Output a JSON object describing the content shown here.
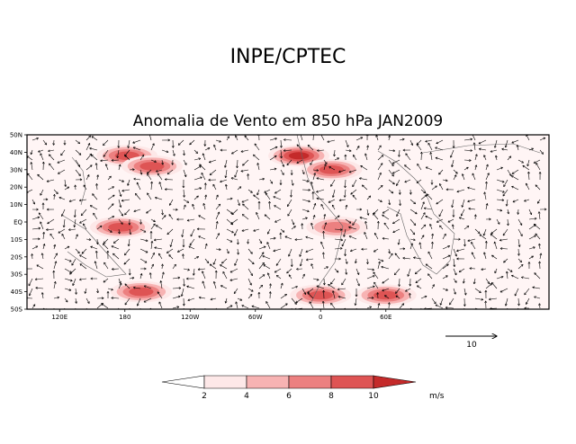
{
  "chart_data": {
    "type": "heatmap",
    "header": "INPE/CPTEC",
    "title": "Anomalia de Vento em 850 hPa JAN2009",
    "variable": "850 hPa wind anomaly vectors with shaded speed",
    "lon_range": [
      90,
      210
    ],
    "lat_range": [
      -50,
      50
    ],
    "x_tick_labels": [
      "120E",
      "180",
      "120W",
      "60W",
      "0",
      "60E"
    ],
    "y_tick_labels": [
      "50N",
      "40N",
      "30N",
      "20N",
      "10N",
      "EQ",
      "10S",
      "20S",
      "30S",
      "40S",
      "50S"
    ],
    "reference_vector": {
      "label": "10",
      "value": 10
    },
    "colorbar": {
      "levels": [
        "2",
        "4",
        "6",
        "8",
        "10"
      ],
      "colors": [
        "#ffffff",
        "#fde8e8",
        "#f7b3b3",
        "#ec8080",
        "#de5454",
        "#c42a2a"
      ],
      "units": "m/s"
    },
    "hotspots": [
      {
        "name": "north-pacific-west",
        "lon": 182,
        "lat": 38,
        "speed": 8
      },
      {
        "name": "north-pacific-east",
        "lon": 205,
        "lat": 32,
        "speed": 8
      },
      {
        "name": "north-atlantic",
        "lon": -20,
        "lat": 38,
        "speed": 9
      },
      {
        "name": "mediterranean-africa",
        "lon": 10,
        "lat": 30,
        "speed": 7
      },
      {
        "name": "south-pacific-west",
        "lon": 176,
        "lat": -3,
        "speed": 7
      },
      {
        "name": "south-pacific-band",
        "lon": 195,
        "lat": -40,
        "speed": 8
      },
      {
        "name": "south-atlantic",
        "lon": 0,
        "lat": -42,
        "speed": 7
      },
      {
        "name": "indian-ocean-south",
        "lon": 60,
        "lat": -42,
        "speed": 7
      },
      {
        "name": "tropical-atlantic",
        "lon": 15,
        "lat": -3,
        "speed": 6
      }
    ]
  },
  "colors": {
    "frame": "#000000",
    "accent": "#de5454"
  }
}
